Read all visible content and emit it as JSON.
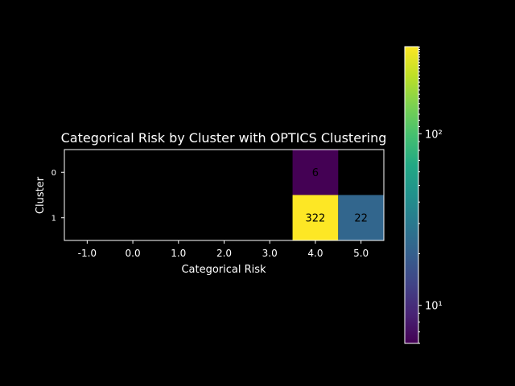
{
  "chart_data": {
    "type": "heatmap",
    "title": "Categorical Risk by Cluster with OPTICS Clustering",
    "xlabel": "Categorical Risk",
    "ylabel": "Cluster",
    "x_categories": [
      "-1.0",
      "0.0",
      "1.0",
      "2.0",
      "3.0",
      "4.0",
      "5.0"
    ],
    "y_categories": [
      "0",
      "1"
    ],
    "cells": [
      {
        "x": "4.0",
        "y": "0",
        "value": 6,
        "label": "6"
      },
      {
        "x": "4.0",
        "y": "1",
        "value": 322,
        "label": "322"
      },
      {
        "x": "5.0",
        "y": "1",
        "value": 22,
        "label": "22"
      }
    ],
    "colorbar": {
      "scale": "log",
      "colormap": "viridis",
      "range": [
        6,
        322
      ],
      "major_ticks": [
        {
          "value": 10,
          "label": "10¹"
        },
        {
          "value": 100,
          "label": "10²"
        }
      ],
      "position": "right"
    },
    "grid": false,
    "empty_cell_color": "#000000"
  }
}
